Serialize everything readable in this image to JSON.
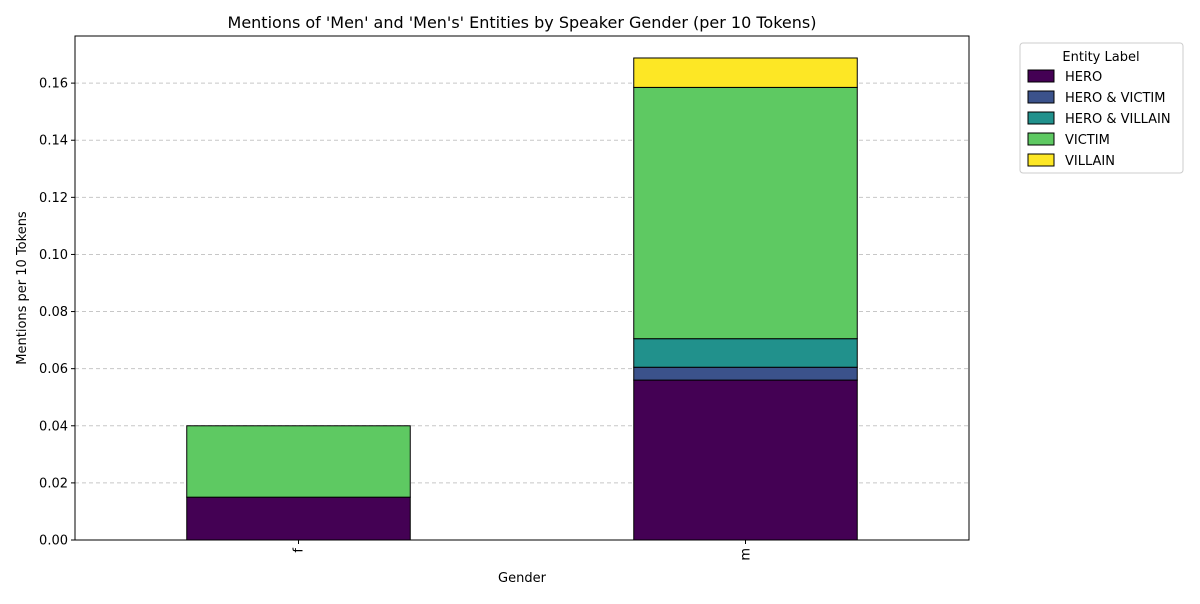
{
  "chart_data": {
    "type": "bar",
    "stacked": true,
    "title": "Mentions of 'Men' and 'Men's' Entities by Speaker Gender (per 10 Tokens)",
    "xlabel": "Gender",
    "ylabel": "Mentions per 10 Tokens",
    "categories": [
      "f",
      "m"
    ],
    "ylim": [
      0,
      0.1765
    ],
    "yticks": [
      0.0,
      0.02,
      0.04,
      0.06,
      0.08,
      0.1,
      0.12,
      0.14,
      0.16
    ],
    "ytick_labels": [
      "0.00",
      "0.02",
      "0.04",
      "0.06",
      "0.08",
      "0.10",
      "0.12",
      "0.14",
      "0.16"
    ],
    "grid": "y-dashed",
    "legend": {
      "title": "Entity Label",
      "placement": "outside-top-right"
    },
    "series": [
      {
        "name": "HERO",
        "color": "#440154",
        "values": [
          0.015,
          0.056
        ]
      },
      {
        "name": "HERO & VICTIM",
        "color": "#3b528b",
        "values": [
          0.0,
          0.0045
        ]
      },
      {
        "name": "HERO & VILLAIN",
        "color": "#21918c",
        "values": [
          0.0,
          0.01
        ]
      },
      {
        "name": "VICTIM",
        "color": "#5ec962",
        "values": [
          0.025,
          0.088
        ]
      },
      {
        "name": "VILLAIN",
        "color": "#fde725",
        "values": [
          0.0,
          0.0103
        ]
      }
    ]
  }
}
